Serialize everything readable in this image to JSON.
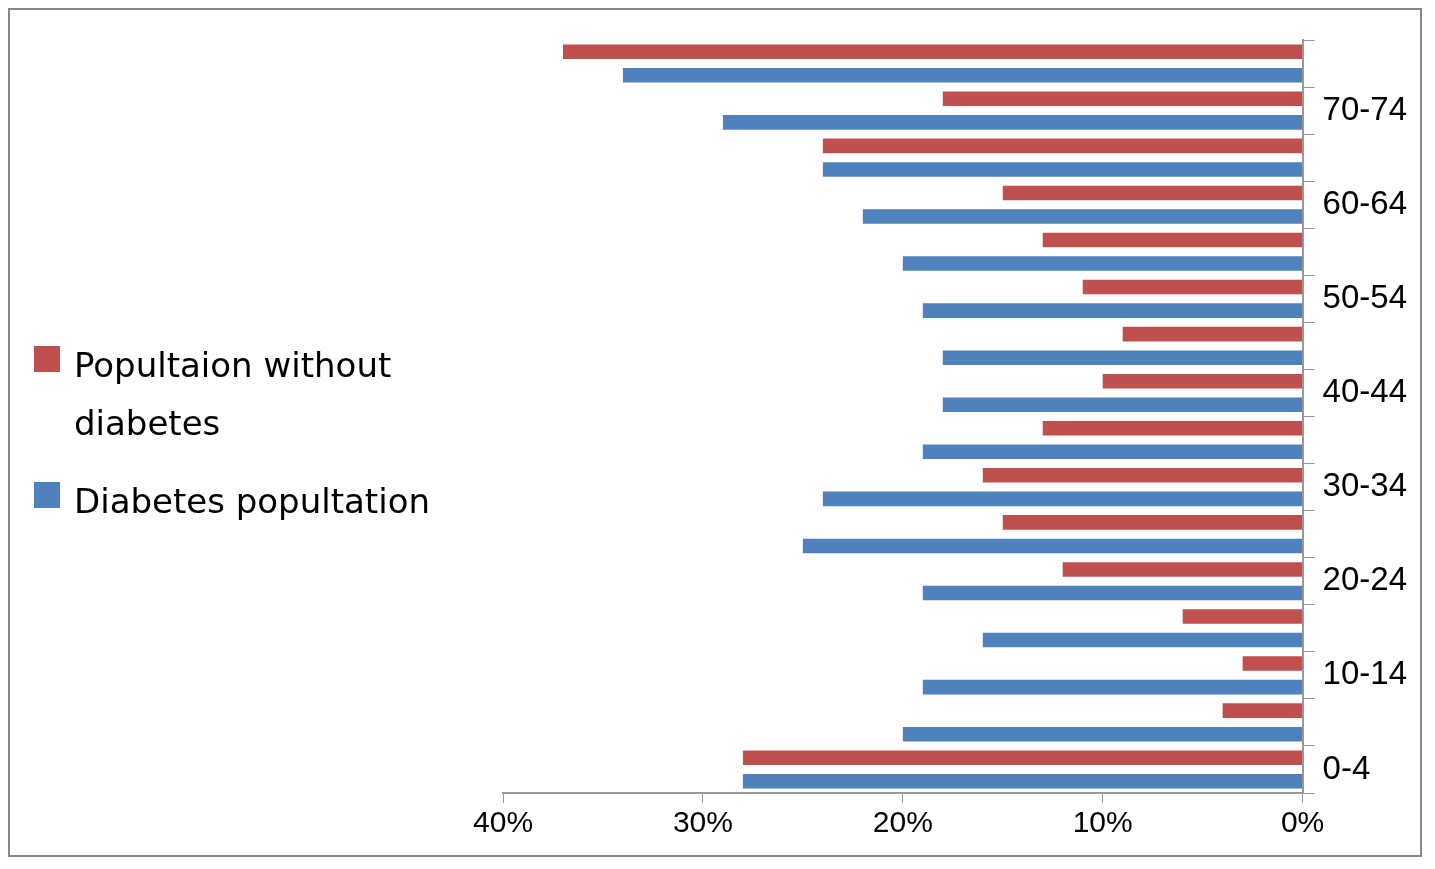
{
  "chart_data": {
    "type": "bar",
    "orientation": "horizontal",
    "categories": [
      null,
      "70-74",
      null,
      "60-64",
      null,
      "50-54",
      null,
      "40-44",
      null,
      "30-34",
      null,
      "20-24",
      null,
      "10-14",
      null,
      "0-4"
    ],
    "series": [
      {
        "name": "Popultaion without diabetes",
        "color": "#c0504d",
        "values": [
          37,
          18,
          24,
          15,
          13,
          11,
          9,
          10,
          13,
          16,
          15,
          12,
          6,
          3,
          4,
          28
        ]
      },
      {
        "name": "Diabetes popultation",
        "color": "#4f81bd",
        "values": [
          34,
          29,
          24,
          22,
          20,
          19,
          18,
          18,
          19,
          24,
          25,
          19,
          16,
          19,
          20,
          28
        ]
      }
    ],
    "xlim": [
      40,
      0
    ],
    "xticks": [
      {
        "value": 40,
        "label": "40%"
      },
      {
        "value": 30,
        "label": "30%"
      },
      {
        "value": 20,
        "label": "20%"
      },
      {
        "value": 10,
        "label": "10%"
      },
      {
        "value": 0,
        "label": "0%"
      }
    ],
    "grid": false,
    "legend": "left"
  }
}
